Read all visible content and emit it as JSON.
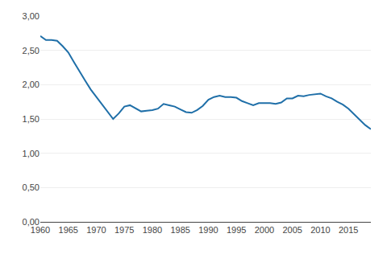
{
  "chart_data": {
    "type": "line",
    "x": [
      1960,
      1961,
      1962,
      1963,
      1964,
      1965,
      1966,
      1967,
      1968,
      1969,
      1970,
      1971,
      1972,
      1973,
      1974,
      1975,
      1976,
      1977,
      1978,
      1979,
      1980,
      1981,
      1982,
      1983,
      1984,
      1985,
      1986,
      1987,
      1988,
      1989,
      1990,
      1991,
      1992,
      1993,
      1994,
      1995,
      1996,
      1997,
      1998,
      1999,
      2000,
      2001,
      2002,
      2003,
      2004,
      2005,
      2006,
      2007,
      2008,
      2009,
      2010,
      2011,
      2012,
      2013,
      2014,
      2015,
      2016,
      2017,
      2018,
      2019
    ],
    "values": [
      2.71,
      2.65,
      2.65,
      2.64,
      2.56,
      2.47,
      2.33,
      2.19,
      2.06,
      1.93,
      1.82,
      1.72,
      1.6,
      1.5,
      1.58,
      1.68,
      1.7,
      1.65,
      1.61,
      1.62,
      1.63,
      1.65,
      1.72,
      1.7,
      1.68,
      1.64,
      1.6,
      1.59,
      1.63,
      1.69,
      1.78,
      1.82,
      1.84,
      1.82,
      1.82,
      1.81,
      1.76,
      1.73,
      1.7,
      1.73,
      1.73,
      1.73,
      1.72,
      1.74,
      1.8,
      1.8,
      1.84,
      1.83,
      1.85,
      1.86,
      1.87,
      1.83,
      1.8,
      1.75,
      1.71,
      1.65,
      1.57,
      1.49,
      1.41,
      1.35
    ],
    "color": "#1f6fa8",
    "xlim": [
      1960,
      2019
    ],
    "ylim": [
      0.0,
      3.0
    ],
    "xticks": [
      1960,
      1965,
      1970,
      1975,
      1980,
      1985,
      1990,
      1995,
      2000,
      2005,
      2010,
      2015
    ],
    "yticks": [
      {
        "value": 0.0,
        "label": "0,00"
      },
      {
        "value": 0.5,
        "label": "0,50"
      },
      {
        "value": 1.0,
        "label": "1,00"
      },
      {
        "value": 1.5,
        "label": "1,50"
      },
      {
        "value": 2.0,
        "label": "2,00"
      },
      {
        "value": 2.5,
        "label": "2,50"
      },
      {
        "value": 3.0,
        "label": "3,00"
      }
    ],
    "grid": true
  }
}
